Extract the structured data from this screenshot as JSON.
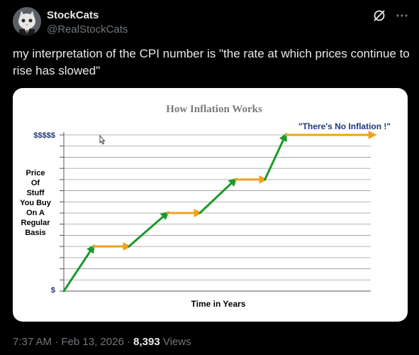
{
  "author": {
    "name": "StockCats",
    "handle": "@RealStockCats"
  },
  "icons": [
    "grok-icon",
    "more-icon"
  ],
  "tweet": {
    "text": "my interpretation of the CPI number is \"the rate at which prices continue to rise has slowed\""
  },
  "figure": {
    "title": "How Inflation Works",
    "annotation": "\"There's No Inflation !\"",
    "ylabel_lines": [
      "Price",
      "Of",
      "Stuff",
      "You Buy",
      "On A",
      "Regular",
      "Basis"
    ],
    "xlabel": "Time in Years",
    "y_top_label": "$$$$$",
    "y_bottom_label": "$"
  },
  "chart_data": {
    "type": "line",
    "title": "How Inflation Works",
    "xlabel": "Time in Years",
    "ylabel": "Price Of Stuff You Buy On A Regular Basis",
    "ytick_labels": [
      "$",
      "$$$$$"
    ],
    "grid": true,
    "segments": [
      {
        "kind": "rise",
        "color": "#1a9a2a",
        "from": [
          0,
          0
        ],
        "to": [
          1,
          4
        ]
      },
      {
        "kind": "flat",
        "color": "#f0a21e",
        "from": [
          1,
          4
        ],
        "to": [
          2.2,
          4
        ]
      },
      {
        "kind": "rise",
        "color": "#1a9a2a",
        "from": [
          2.2,
          4
        ],
        "to": [
          3.5,
          7
        ]
      },
      {
        "kind": "flat",
        "color": "#f0a21e",
        "from": [
          3.5,
          7
        ],
        "to": [
          4.6,
          7
        ]
      },
      {
        "kind": "rise",
        "color": "#1a9a2a",
        "from": [
          4.6,
          7
        ],
        "to": [
          5.8,
          10
        ]
      },
      {
        "kind": "flat",
        "color": "#f0a21e",
        "from": [
          5.8,
          10
        ],
        "to": [
          6.8,
          10
        ]
      },
      {
        "kind": "rise",
        "color": "#1a9a2a",
        "from": [
          6.8,
          10
        ],
        "to": [
          7.5,
          14
        ]
      },
      {
        "kind": "flat",
        "color": "#f0a21e",
        "from": [
          7.5,
          14
        ],
        "to": [
          10.5,
          14
        ]
      }
    ],
    "xlim": [
      0,
      10.5
    ],
    "ylim": [
      0,
      14
    ]
  },
  "footer": {
    "time": "7:37 AM",
    "date": "Feb 13, 2026",
    "views_count": "8,393",
    "views_label": "Views"
  },
  "colors": {
    "background": "#000000",
    "text_primary": "#e7e9ea",
    "text_secondary": "#71767b",
    "rise": "#1a9a2a",
    "flat": "#f0a21e",
    "annotation": "#1f3a78"
  }
}
